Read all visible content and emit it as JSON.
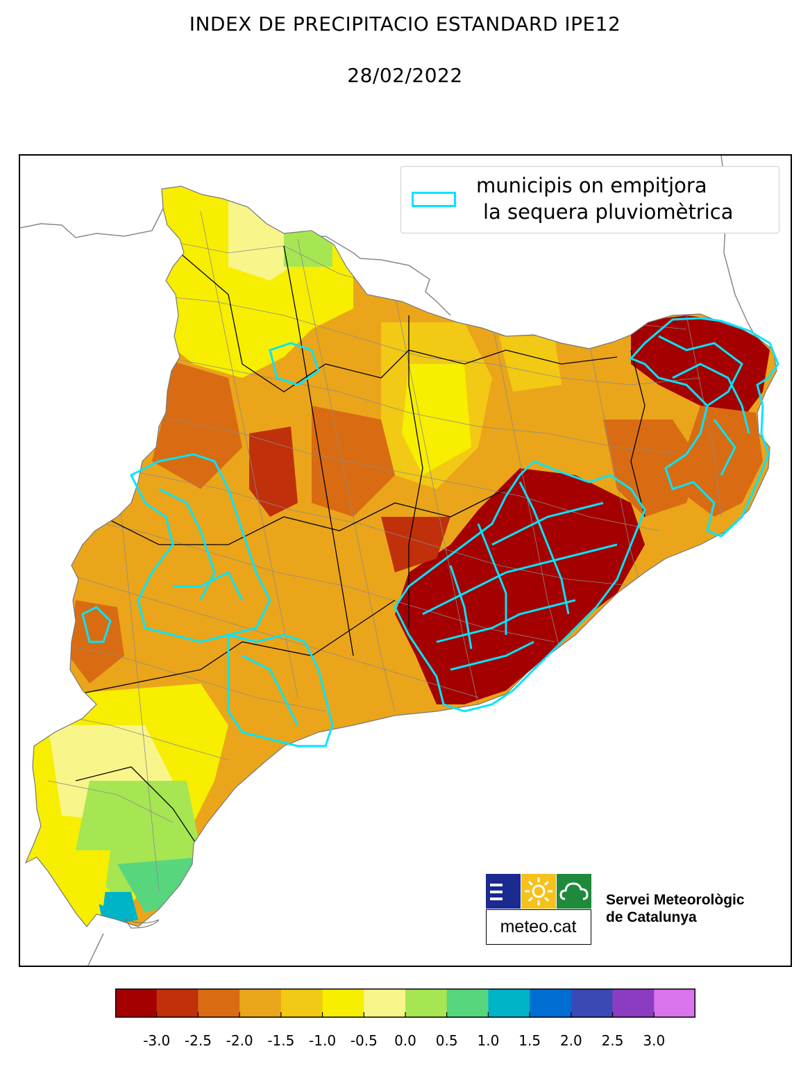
{
  "title": "INDEX DE PRECIPITACIO ESTANDARD IPE12",
  "date": "28/02/2022",
  "legend": {
    "line1": "municipis on empitjora",
    "line2": "la sequera pluviomètrica",
    "outline_color": "#00e5ff"
  },
  "branding": {
    "logo_text": "meteo.cat",
    "org_line1": "Servei Meteorològic",
    "org_line2": "de Catalunya",
    "colors": {
      "blue": "#1b2a8f",
      "yellow": "#f6c11a",
      "green": "#1f8a3c"
    }
  },
  "colorbar": {
    "colors": [
      "#a50000",
      "#c0300a",
      "#d96c12",
      "#eba51a",
      "#f2c914",
      "#f7ee00",
      "#f8f58a",
      "#a6e653",
      "#58d67e",
      "#00b4c8",
      "#006ed2",
      "#3b49b6",
      "#8c3cc0",
      "#d974ec"
    ],
    "ticks": [
      "-3.0",
      "-2.5",
      "-2.0",
      "-1.5",
      "-1.0",
      "-0.5",
      "0.0",
      "0.5",
      "1.0",
      "1.5",
      "2.0",
      "2.5",
      "3.0"
    ]
  }
}
